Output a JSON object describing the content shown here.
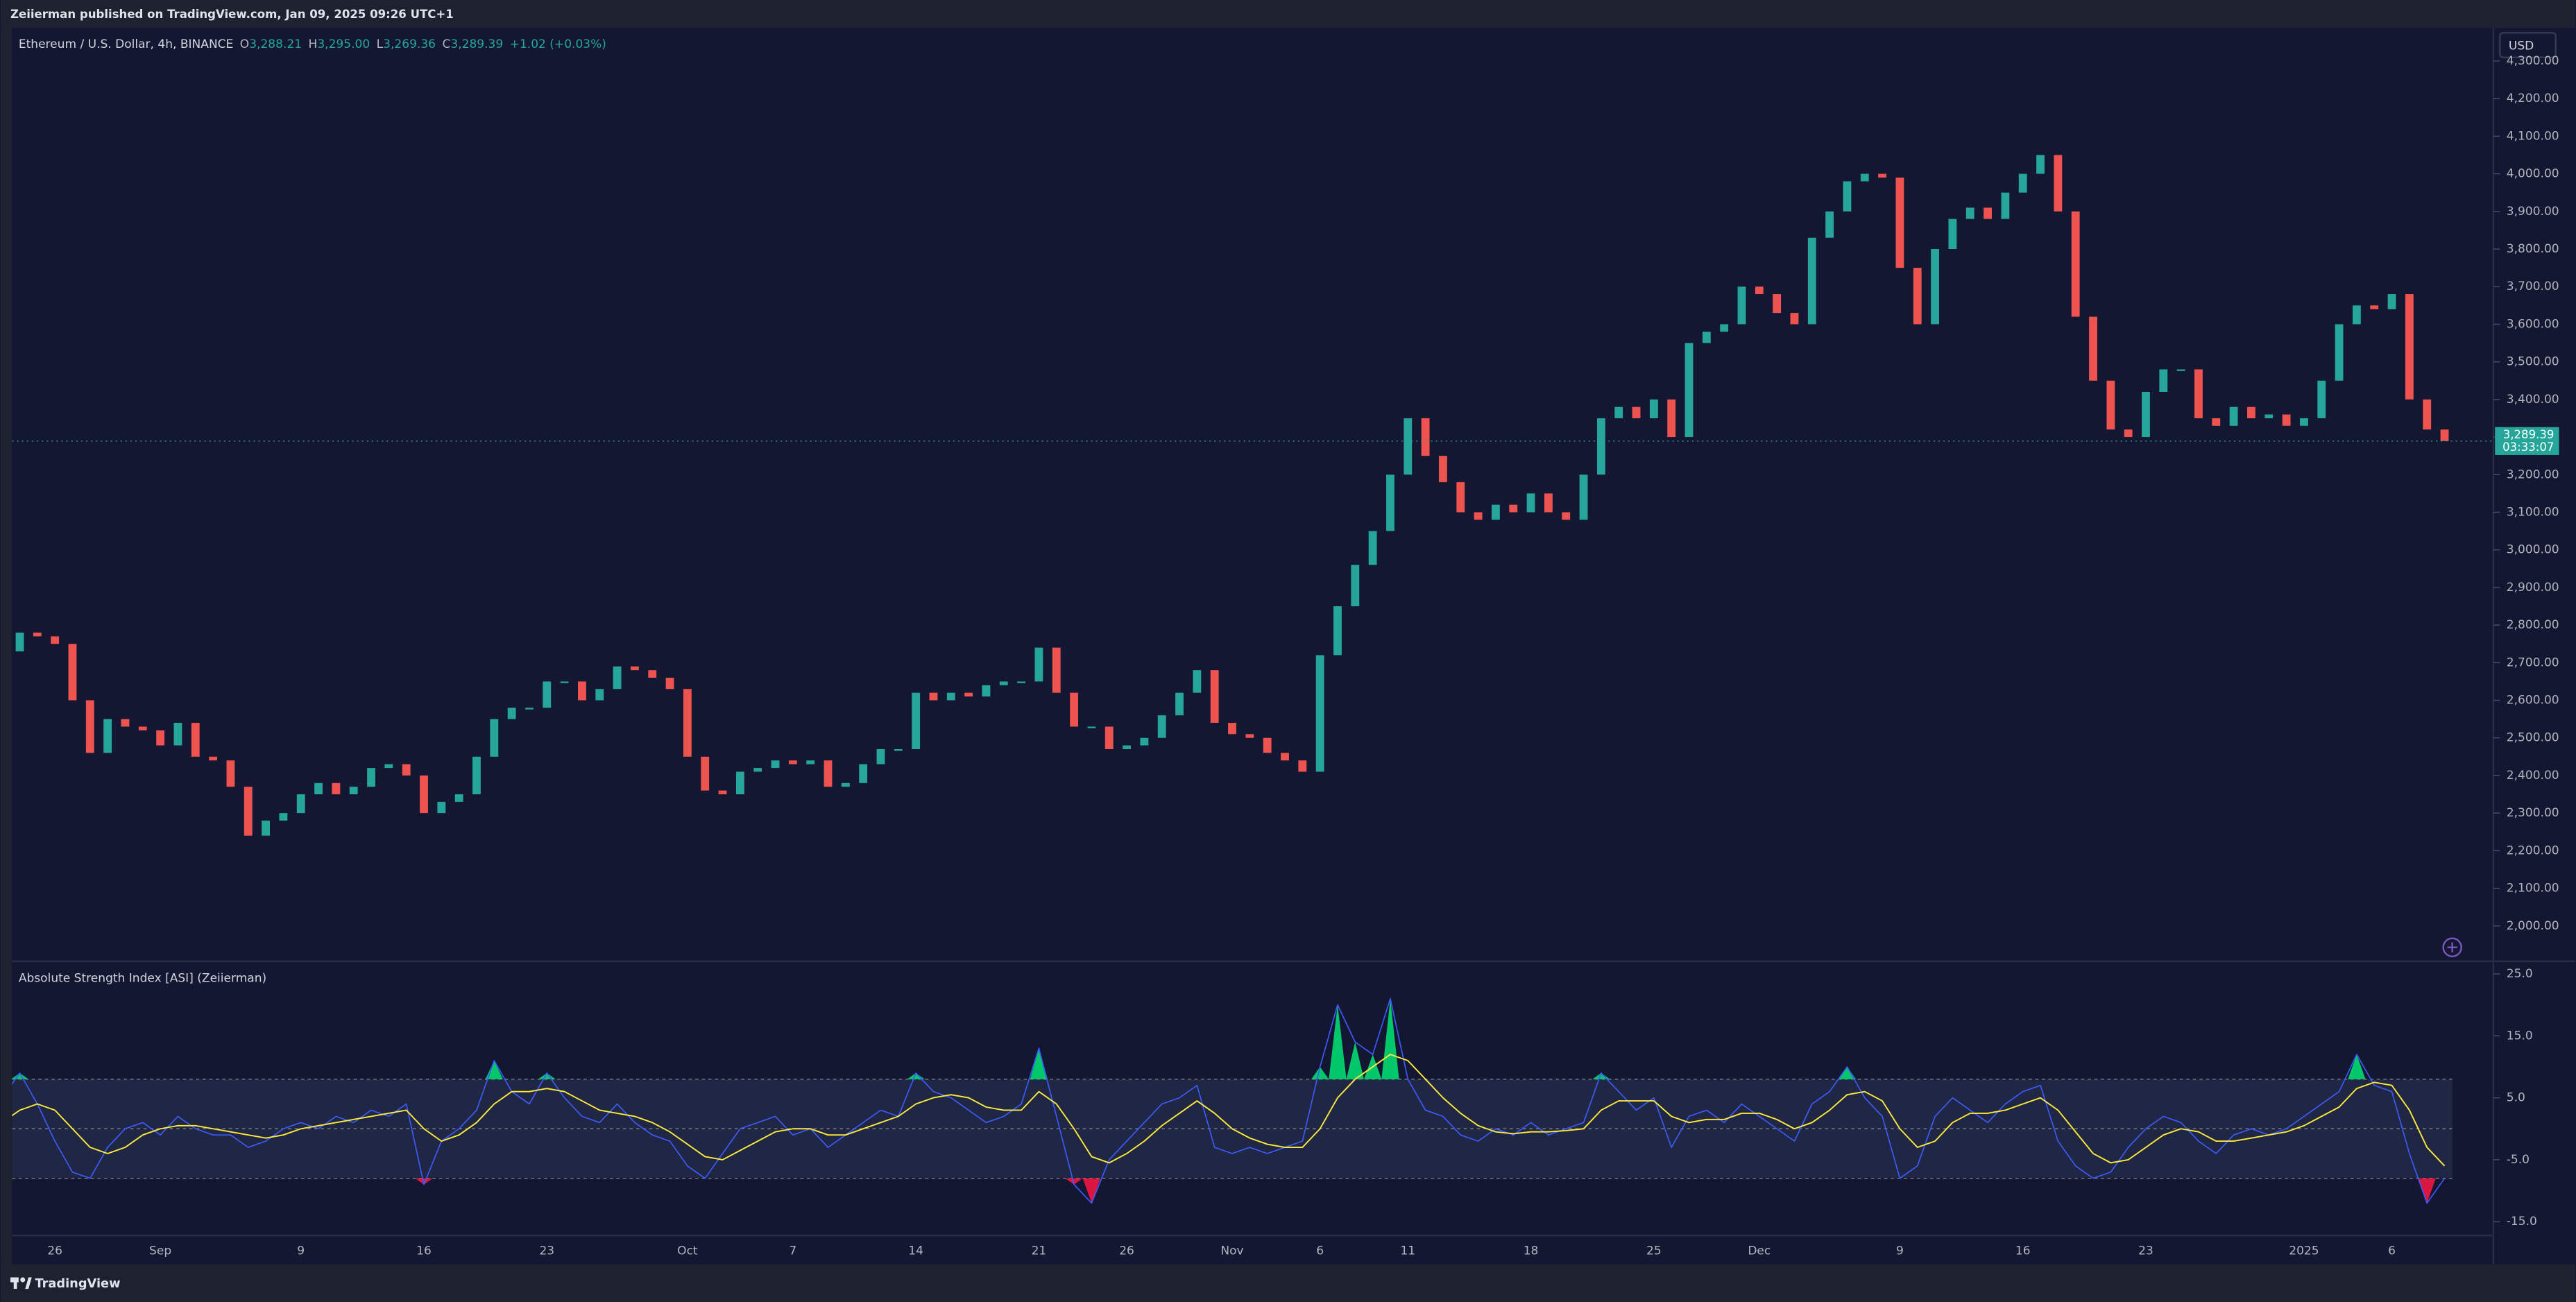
{
  "header": {
    "publisher": "Zeiierman published on TradingView.com, Jan 09, 2025 09:26 UTC+1"
  },
  "legend": {
    "symbol": "Ethereum / U.S. Dollar, 4h, BINANCE",
    "fields": [
      {
        "label": "O",
        "value": "3,288.21"
      },
      {
        "label": "H",
        "value": "3,295.00"
      },
      {
        "label": "L",
        "value": "3,269.36"
      },
      {
        "label": "C",
        "value": "3,289.39"
      }
    ],
    "change": "+1.02 (+0.03%)"
  },
  "price_axis": {
    "currency": "USD",
    "last_price": "3,289.39",
    "countdown": "03:33:07"
  },
  "footer": {
    "brand": "TradingView"
  },
  "chart_data": [
    {
      "type": "candle",
      "up_color": "#26a69a",
      "down_color": "#ef5350",
      "values": [
        2730,
        2780,
        2770,
        2750,
        2600,
        2460,
        2550,
        2530,
        2520,
        2480,
        2540,
        2450,
        2440,
        2370,
        2240,
        2280,
        2300,
        2350,
        2380,
        2350,
        2370,
        2420,
        2430,
        2400,
        2300,
        2330,
        2350,
        2450,
        2550,
        2580,
        2580,
        2650,
        2650,
        2600,
        2630,
        2690,
        2680,
        2660,
        2630,
        2450,
        2360,
        2350,
        2410,
        2420,
        2440,
        2430,
        2440,
        2370,
        2380,
        2430,
        2470,
        2470,
        2620,
        2600,
        2620,
        2610,
        2640,
        2650,
        2650,
        2740,
        2620,
        2530,
        2530,
        2470,
        2480,
        2500,
        2560,
        2620,
        2680,
        2540,
        2510,
        2500,
        2460,
        2440,
        2410,
        2720,
        2850,
        2960,
        3050,
        3200,
        3350,
        3250,
        3180,
        3100,
        3080,
        3120,
        3100,
        3150,
        3100,
        3080,
        3200,
        3350,
        3380,
        3350,
        3400,
        3300,
        3550,
        3580,
        3600,
        3700,
        3680,
        3630,
        3600,
        3830,
        3900,
        3980,
        4000,
        3990,
        3750,
        3600,
        3800,
        3880,
        3910,
        3880,
        3950,
        4000,
        4050,
        3900,
        3620,
        3450,
        3320,
        3300,
        3420,
        3480,
        3480,
        3350,
        3330,
        3380,
        3350,
        3360,
        3330,
        3350,
        3450,
        3600,
        3650,
        3640,
        3680,
        3400,
        3320,
        3289.39
      ],
      "ylim": [
        1908,
        4388
      ],
      "yticks": [
        {
          "value": 2000,
          "label": "2,000.00"
        },
        {
          "value": 2100,
          "label": "2,100.00"
        },
        {
          "value": 2200,
          "label": "2,200.00"
        },
        {
          "value": 2300,
          "label": "2,300.00"
        },
        {
          "value": 2400,
          "label": "2,400.00"
        },
        {
          "value": 2500,
          "label": "2,500.00"
        },
        {
          "value": 2600,
          "label": "2,600.00"
        },
        {
          "value": 2700,
          "label": "2,700.00"
        },
        {
          "value": 2800,
          "label": "2,800.00"
        },
        {
          "value": 2900,
          "label": "2,900.00"
        },
        {
          "value": 3000,
          "label": "3,000.00"
        },
        {
          "value": 3100,
          "label": "3,100.00"
        },
        {
          "value": 3200,
          "label": "3,200.00"
        },
        {
          "value": 3300,
          "label": "3,300.00"
        },
        {
          "value": 3400,
          "label": "3,400.00"
        },
        {
          "value": 3500,
          "label": "3,500.00"
        },
        {
          "value": 3600,
          "label": "3,600.00"
        },
        {
          "value": 3700,
          "label": "3,700.00"
        },
        {
          "value": 3800,
          "label": "3,800.00"
        },
        {
          "value": 3900,
          "label": "3,900.00"
        },
        {
          "value": 4000,
          "label": "4,000.00"
        },
        {
          "value": 4100,
          "label": "4,100.00"
        },
        {
          "value": 4200,
          "label": "4,200.00"
        },
        {
          "value": 4300,
          "label": "4,300.00"
        }
      ]
    },
    {
      "type": "oscillator",
      "title": "Absolute Strength Index [ASI] (Zeiierman)",
      "categories": [
        null,
        null,
        null,
        "26",
        null,
        null,
        null,
        null,
        null,
        "Sep",
        null,
        null,
        null,
        null,
        null,
        null,
        null,
        "9",
        null,
        null,
        null,
        null,
        null,
        null,
        "16",
        null,
        null,
        null,
        null,
        null,
        null,
        "23",
        null,
        null,
        null,
        null,
        null,
        null,
        null,
        "Oct",
        null,
        null,
        null,
        null,
        null,
        "7",
        null,
        null,
        null,
        null,
        null,
        null,
        "14",
        null,
        null,
        null,
        null,
        null,
        null,
        "21",
        null,
        null,
        null,
        null,
        "26",
        null,
        null,
        null,
        null,
        null,
        "Nov",
        null,
        null,
        null,
        null,
        "6",
        null,
        null,
        null,
        null,
        "11",
        null,
        null,
        null,
        null,
        null,
        null,
        "18",
        null,
        null,
        null,
        null,
        null,
        null,
        "25",
        null,
        null,
        null,
        null,
        null,
        "Dec",
        null,
        null,
        null,
        null,
        null,
        null,
        null,
        "9",
        null,
        null,
        null,
        null,
        null,
        null,
        "16",
        null,
        null,
        null,
        null,
        null,
        null,
        "23",
        null,
        null,
        null,
        null,
        null,
        null,
        null,
        null,
        "2025",
        null,
        null,
        null,
        null,
        "6",
        null,
        null,
        null
      ],
      "series": [
        {
          "color": "#3d5afe",
          "values": [
            5,
            9,
            4,
            -2,
            -7,
            -8,
            -3,
            0,
            1,
            -1,
            2,
            0,
            -1,
            -1,
            -3,
            -2,
            0,
            1,
            0,
            2,
            1,
            3,
            2,
            4,
            -9,
            -2,
            0,
            3,
            11,
            6,
            4,
            9,
            5,
            2,
            1,
            4,
            1,
            -1,
            -2,
            -6,
            -8,
            -4,
            0,
            1,
            2,
            -1,
            0,
            -3,
            -1,
            1,
            3,
            2,
            9,
            6,
            5,
            3,
            1,
            2,
            4,
            13,
            2,
            -9,
            -12,
            -5,
            -2,
            1,
            4,
            5,
            7,
            -3,
            -4,
            -3,
            -4,
            -3,
            -2,
            10,
            20,
            14,
            12,
            21,
            8,
            3,
            2,
            -1,
            -2,
            0,
            -1,
            1,
            -1,
            0,
            1,
            9,
            6,
            3,
            5,
            -3,
            2,
            3,
            1,
            4,
            2,
            0,
            -2,
            4,
            6,
            10,
            5,
            2,
            -8,
            -6,
            2,
            5,
            3,
            1,
            4,
            6,
            7,
            -2,
            -6,
            -8,
            -7,
            -3,
            0,
            2,
            1,
            -2,
            -4,
            -1,
            0,
            -1,
            0,
            2,
            4,
            6,
            12,
            7,
            6,
            -4,
            -12,
            -8
          ]
        },
        {
          "color": "#ffeb3b",
          "values": [
            1,
            3,
            4,
            3,
            0,
            -3,
            -4,
            -3,
            -1,
            0,
            0.5,
            0.5,
            0,
            -0.5,
            -1,
            -1.5,
            -1,
            0,
            0.5,
            1,
            1.5,
            2,
            2.5,
            3,
            0,
            -2,
            -1,
            1,
            4,
            6,
            6,
            6.5,
            6,
            4.5,
            3,
            2.5,
            2,
            1,
            -0.5,
            -2.5,
            -4.5,
            -5,
            -3.5,
            -2,
            -0.5,
            0,
            0,
            -1,
            -1,
            0,
            1,
            2,
            4,
            5,
            5.5,
            5,
            3.5,
            3,
            3,
            6,
            4,
            0,
            -4.5,
            -5.5,
            -4,
            -2,
            0.5,
            2.5,
            4.5,
            2.5,
            0,
            -1.5,
            -2.5,
            -3,
            -3,
            0,
            5,
            8,
            10,
            12,
            11,
            8,
            5,
            2.5,
            0.5,
            -0.5,
            -0.8,
            -0.5,
            -0.5,
            -0.3,
            0,
            3,
            4.5,
            4.5,
            4.5,
            2,
            1,
            1.5,
            1.5,
            2.5,
            2.5,
            1.5,
            0,
            1,
            3,
            5.5,
            6,
            4.5,
            0,
            -3,
            -2,
            1,
            2.5,
            2.5,
            3,
            4,
            5,
            3,
            -0.5,
            -4,
            -5.5,
            -5,
            -3,
            -1,
            0,
            -0.5,
            -2,
            -2,
            -1.5,
            -1,
            -0.5,
            0.5,
            2,
            3.5,
            6.5,
            7.5,
            7,
            3,
            -3,
            -6
          ]
        }
      ],
      "levels": [
        8,
        0,
        -8
      ],
      "upper_color": "#00e676",
      "lower_color": "#ff1744",
      "ylim": [
        -17.1,
        26.9
      ],
      "yticks": [
        {
          "value": 25,
          "label": "25.0"
        },
        {
          "value": 15,
          "label": "15.0"
        },
        {
          "value": 5,
          "label": "5.0"
        },
        {
          "value": -5,
          "label": "-5.0"
        },
        {
          "value": -15,
          "label": "-15.0"
        }
      ]
    }
  ]
}
